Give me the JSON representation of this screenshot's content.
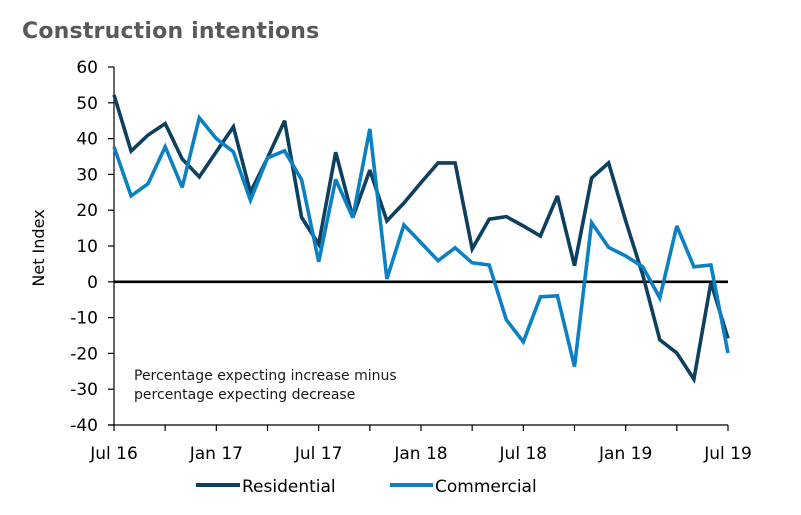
{
  "chart_data": {
    "type": "line",
    "title": "Construction intentions",
    "xlabel": "",
    "ylabel": "Net Index",
    "ylim": [
      -40,
      60
    ],
    "yticks": [
      60,
      50,
      40,
      30,
      20,
      10,
      0,
      -10,
      -20,
      -30,
      -40
    ],
    "x": [
      "Jul 16",
      "Aug 16",
      "Sep 16",
      "Oct 16",
      "Nov 16",
      "Dec 16",
      "Jan 17",
      "Feb 17",
      "Mar 17",
      "Apr 17",
      "May 17",
      "Jun 17",
      "Jul 17",
      "Aug 17",
      "Sep 17",
      "Oct 17",
      "Nov 17",
      "Dec 17",
      "Jan 18",
      "Feb 18",
      "Mar 18",
      "Apr 18",
      "May 18",
      "Jun 18",
      "Jul 18",
      "Aug 18",
      "Sep 18",
      "Oct 18",
      "Nov 18",
      "Dec 18",
      "Jan 19",
      "Feb 19",
      "Mar 19",
      "Apr 19",
      "May 19",
      "Jun 19",
      "Jul 19"
    ],
    "xtick_labels": [
      "Jul 16",
      "Jan 17",
      "Jul 17",
      "Jan 18",
      "Jul 18",
      "Jan 19",
      "Jul 19"
    ],
    "minor_ticks": "quarterly",
    "zero_line": true,
    "grid": false,
    "legend_position": "bottom",
    "annotation": [
      "Percentage expecting increase minus",
      "percentage expecting decrease"
    ],
    "series": [
      {
        "name": "Residential",
        "color": "#0d3f5e",
        "values": [
          52.2,
          36.5,
          41,
          44.2,
          34.3,
          29.3,
          36.3,
          43.3,
          25,
          34.6,
          45,
          18,
          10.5,
          36.2,
          18,
          31.2,
          17,
          22,
          27.7,
          33.2,
          33.2,
          9.2,
          17.5,
          18.2,
          15.6,
          12.8,
          24,
          4.5,
          29,
          33.2,
          17,
          2,
          -16.2,
          -19.9,
          -27.2,
          -0.2,
          -15.8
        ]
      },
      {
        "name": "Commercial",
        "color": "#0b80c2",
        "values": [
          37.7,
          24,
          27.4,
          37.7,
          26.4,
          45.8,
          40,
          36.3,
          22.8,
          34.6,
          36.6,
          28.5,
          5.6,
          28.6,
          17.9,
          42.7,
          0.8,
          15.9,
          10.9,
          5.9,
          9.5,
          5.3,
          4.7,
          -10.6,
          -16.8,
          -4.2,
          -3.9,
          -23.7,
          16.5,
          9.6,
          7.2,
          4.2,
          -4.5,
          15.6,
          4.2,
          4.7,
          -19.9
        ]
      }
    ]
  }
}
